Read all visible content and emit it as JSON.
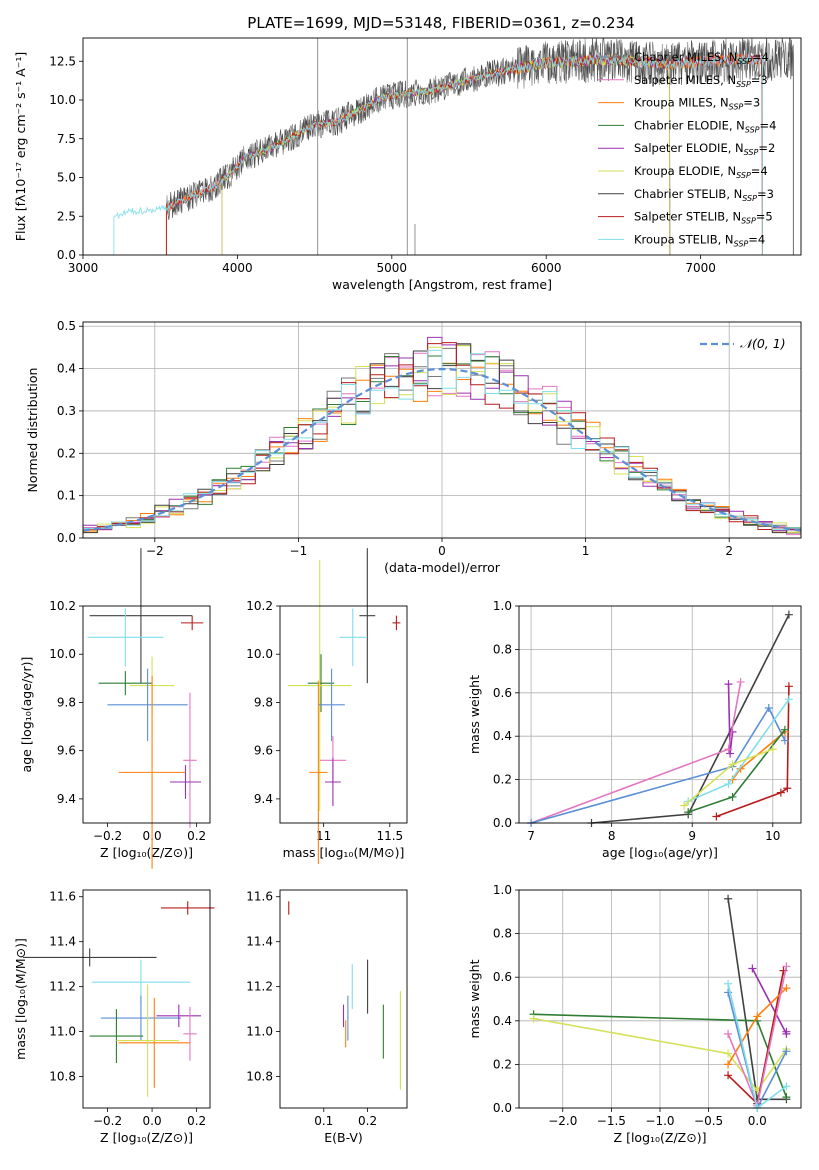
{
  "chart_data": [
    {
      "id": "spectrum",
      "type": "line",
      "title": "PLATE=1699, MJD=53148, FIBERID=0361, z=0.234",
      "xlabel": "wavelength [Angstrom, rest frame]",
      "ylabel": "Flux [fλ10⁻¹⁷ erg cm⁻² s⁻¹ A⁻¹]",
      "xlim": [
        3000,
        7650
      ],
      "ylim": [
        0,
        14
      ],
      "xticks": [
        3000,
        4000,
        5000,
        6000,
        7000
      ],
      "yticks": [
        0.0,
        2.5,
        5.0,
        7.5,
        10.0,
        12.5
      ],
      "legend_position": "top-right",
      "continuum": {
        "x": [
          3200,
          3300,
          3450,
          3550,
          3700,
          3850,
          3950,
          4050,
          4200,
          4350,
          4500,
          4650,
          4800,
          4950,
          5100,
          5250,
          5400,
          5600,
          5800,
          6000,
          6200,
          6400,
          6600,
          6800,
          7000,
          7200,
          7400,
          7600
        ],
        "y": [
          2.4,
          2.8,
          2.9,
          3.1,
          3.8,
          4.4,
          5.2,
          6.3,
          6.8,
          7.6,
          8.4,
          8.6,
          9.4,
          10.2,
          10.4,
          10.6,
          11.0,
          11.6,
          12.0,
          12.4,
          12.5,
          12.6,
          12.5,
          12.3,
          12.5,
          12.6,
          12.6,
          12.7
        ]
      },
      "series": [
        {
          "name": "Chabrier MILES, N",
          "nssp": "4",
          "color": "#7a7a7a",
          "start": 3540,
          "end": 7600
        },
        {
          "name": "Salpeter MILES, N",
          "nssp": "3",
          "color": "#e377c2",
          "start": 3540,
          "end": 7400
        },
        {
          "name": "Kroupa MILES, N",
          "nssp": "3",
          "color": "#ff7f0e",
          "start": 3540,
          "end": 7400
        },
        {
          "name": "Chabrier ELODIE, N",
          "nssp": "4",
          "color": "#2e7d32",
          "start": 3900,
          "end": 6800
        },
        {
          "name": "Salpeter ELODIE, N",
          "nssp": "2",
          "color": "#9b30b0",
          "start": 3900,
          "end": 6800
        },
        {
          "name": "Kroupa ELODIE, N",
          "nssp": "4",
          "color": "#d4e157",
          "start": 3900,
          "end": 6800
        },
        {
          "name": "Chabrier STELIB, N",
          "nssp": "3",
          "color": "#404040",
          "start": 3540,
          "end": 7600
        },
        {
          "name": "Salpeter STELIB, N",
          "nssp": "5",
          "color": "#b71c1c",
          "start": 3540,
          "end": 7400
        },
        {
          "name": "Kroupa STELIB, N",
          "nssp": "4",
          "color": "#80deea",
          "start": 3200,
          "end": 7400
        }
      ],
      "legend_sub": "SSP"
    },
    {
      "id": "residuals",
      "type": "histogram",
      "xlabel": "(data-model)/error",
      "ylabel": "Normed distribution",
      "xlim": [
        -2.5,
        2.5
      ],
      "ylim": [
        0,
        0.51
      ],
      "xticks": [
        -2,
        -1,
        0,
        1,
        2
      ],
      "yticks": [
        0.0,
        0.1,
        0.2,
        0.3,
        0.4,
        0.5
      ],
      "grid": true,
      "gaussian_label": "𝒩(0, 1)",
      "gaussian_color": "#5b8fd6",
      "bin_width": 0.1,
      "series_colors": [
        "#7a7a7a",
        "#e377c2",
        "#ff7f0e",
        "#2e7d32",
        "#9b30b0",
        "#d4e157",
        "#404040",
        "#b71c1c",
        "#80deea"
      ]
    },
    {
      "id": "age_vs_Z",
      "type": "errorbar",
      "xlabel": "Z [log₁₀(Z/Z⊙)]",
      "ylabel": "age  [log₁₀(age/yr)]",
      "xlim": [
        -0.31,
        0.26
      ],
      "ylim": [
        9.3,
        10.2
      ],
      "xticks": [
        -0.2,
        0.0,
        0.2
      ],
      "xticklabels": [
        "−0.2",
        "0.0",
        "0.2"
      ],
      "yticks": [
        9.4,
        9.6,
        9.8,
        10.0,
        10.2
      ],
      "points": [
        {
          "x": -0.05,
          "xerr": 0.23,
          "y": 10.16,
          "yerr": 0.28,
          "color": "#404040"
        },
        {
          "x": 0.18,
          "xerr": 0.05,
          "y": 10.13,
          "yerr": 0.03,
          "color": "#b71c1c"
        },
        {
          "x": -0.12,
          "xerr": 0.17,
          "y": 10.07,
          "yerr": 0.12,
          "color": "#80deea"
        },
        {
          "x": -0.12,
          "xerr": 0.12,
          "y": 9.88,
          "yerr": 0.05,
          "color": "#2e7d32"
        },
        {
          "x": 0.0,
          "xerr": 0.1,
          "y": 9.87,
          "yerr": 0.12,
          "color": "#d4e157"
        },
        {
          "x": -0.02,
          "xerr": 0.18,
          "y": 9.79,
          "yerr": 0.15,
          "color": "#5b8fd6"
        },
        {
          "x": 0.17,
          "xerr": 0.03,
          "y": 9.56,
          "yerr": 0.28,
          "color": "#e377c2"
        },
        {
          "x": 0.15,
          "xerr": 0.07,
          "y": 9.47,
          "yerr": 0.07,
          "color": "#9b30b0"
        },
        {
          "x": 0.0,
          "xerr": 0.15,
          "y": 9.51,
          "yerr": 0.4,
          "color": "#ff7f0e"
        }
      ]
    },
    {
      "id": "age_vs_mass",
      "type": "errorbar",
      "xlabel": "mass [log₁₀(M/M⊙)]",
      "ylabel": "",
      "xlim": [
        10.67,
        11.63
      ],
      "ylim": [
        9.3,
        10.2
      ],
      "xticks": [
        11.0,
        11.5
      ],
      "yticks": [
        9.4,
        9.6,
        9.8,
        10.0,
        10.2
      ],
      "points": [
        {
          "x": 11.33,
          "xerr": 0.06,
          "y": 10.16,
          "yerr": 0.28,
          "color": "#404040"
        },
        {
          "x": 11.55,
          "xerr": 0.03,
          "y": 10.13,
          "yerr": 0.03,
          "color": "#b71c1c"
        },
        {
          "x": 11.22,
          "xerr": 0.1,
          "y": 10.07,
          "yerr": 0.12,
          "color": "#80deea"
        },
        {
          "x": 10.98,
          "xerr": 0.1,
          "y": 9.88,
          "yerr": 0.12,
          "color": "#2e7d32"
        },
        {
          "x": 10.97,
          "xerr": 0.24,
          "y": 9.87,
          "yerr": 0.52,
          "color": "#d4e157"
        },
        {
          "x": 11.06,
          "xerr": 0.1,
          "y": 9.79,
          "yerr": 0.15,
          "color": "#5b8fd6"
        },
        {
          "x": 11.07,
          "xerr": 0.1,
          "y": 9.56,
          "yerr": 0.1,
          "color": "#e377c2"
        },
        {
          "x": 11.07,
          "xerr": 0.06,
          "y": 9.47,
          "yerr": 0.1,
          "color": "#9b30b0"
        },
        {
          "x": 10.96,
          "xerr": 0.07,
          "y": 9.51,
          "yerr": 0.38,
          "color": "#ff7f0e"
        }
      ]
    },
    {
      "id": "weight_vs_age",
      "type": "line",
      "xlabel": "age  [log₁₀(age/yr)]",
      "ylabel": "mass weight",
      "xlim": [
        6.85,
        10.35
      ],
      "ylim": [
        0,
        1.0
      ],
      "xticks": [
        7,
        8,
        9,
        10
      ],
      "yticks": [
        0.0,
        0.2,
        0.4,
        0.6,
        0.8,
        1.0
      ],
      "grid": true,
      "series": [
        {
          "color": "#404040",
          "x": [
            7.75,
            8.95,
            10.2
          ],
          "y": [
            0.0,
            0.04,
            0.96
          ]
        },
        {
          "color": "#b71c1c",
          "x": [
            9.3,
            10.1,
            10.18,
            10.2
          ],
          "y": [
            0.03,
            0.14,
            0.16,
            0.63
          ]
        },
        {
          "color": "#9b30b0",
          "x": [
            9.45,
            9.47,
            9.5
          ],
          "y": [
            0.64,
            0.32,
            0.42
          ]
        },
        {
          "color": "#e377c2",
          "x": [
            7.0,
            9.45,
            9.6
          ],
          "y": [
            0.0,
            0.34,
            0.65
          ]
        },
        {
          "color": "#5b8fd6",
          "x": [
            7.0,
            9.5,
            9.95,
            10.15
          ],
          "y": [
            0.0,
            0.26,
            0.53,
            0.38
          ]
        },
        {
          "color": "#ff7f0e",
          "x": [
            9.5,
            9.6,
            10.15
          ],
          "y": [
            0.2,
            0.25,
            0.42
          ]
        },
        {
          "color": "#2e7d32",
          "x": [
            8.95,
            9.5,
            10.15
          ],
          "y": [
            0.05,
            0.12,
            0.43
          ]
        },
        {
          "color": "#80deea",
          "x": [
            8.95,
            9.45,
            10.2
          ],
          "y": [
            0.1,
            0.18,
            0.57
          ]
        },
        {
          "color": "#d4e157",
          "x": [
            8.9,
            9.5,
            10.0
          ],
          "y": [
            0.08,
            0.27,
            0.34
          ]
        }
      ]
    },
    {
      "id": "mass_vs_Z",
      "type": "errorbar",
      "xlabel": "Z [log₁₀(Z/Z⊙)]",
      "ylabel": "mass [log₁₀(M/M⊙)]",
      "xlim": [
        -0.31,
        0.26
      ],
      "ylim": [
        10.66,
        11.63
      ],
      "xticks": [
        -0.2,
        0.0,
        0.2
      ],
      "xticklabels": [
        "−0.2",
        "0.0",
        "0.2"
      ],
      "yticks": [
        10.8,
        11.0,
        11.2,
        11.4,
        11.6
      ],
      "points": [
        {
          "x": 0.16,
          "xerr": 0.12,
          "y": 11.55,
          "yerr": 0.03,
          "color": "#b71c1c"
        },
        {
          "x": -0.28,
          "xerr": 0.3,
          "y": 11.33,
          "yerr": 0.04,
          "color": "#404040"
        },
        {
          "x": -0.05,
          "xerr": 0.22,
          "y": 11.22,
          "yerr": 0.1,
          "color": "#80deea"
        },
        {
          "x": -0.05,
          "xerr": 0.18,
          "y": 11.06,
          "yerr": 0.1,
          "color": "#5b8fd6"
        },
        {
          "x": 0.12,
          "xerr": 0.1,
          "y": 11.07,
          "yerr": 0.05,
          "color": "#9b30b0"
        },
        {
          "x": 0.17,
          "xerr": 0.03,
          "y": 10.99,
          "yerr": 0.12,
          "color": "#e377c2"
        },
        {
          "x": -0.16,
          "xerr": 0.12,
          "y": 10.98,
          "yerr": 0.12,
          "color": "#2e7d32"
        },
        {
          "x": 0.01,
          "xerr": 0.16,
          "y": 10.95,
          "yerr": 0.2,
          "color": "#ff7f0e"
        },
        {
          "x": -0.02,
          "xerr": 0.14,
          "y": 10.96,
          "yerr": 0.25,
          "color": "#d4e157"
        }
      ]
    },
    {
      "id": "mass_vs_ebv",
      "type": "errorbar",
      "xlabel": "E(B-V)",
      "ylabel": "",
      "xlim": [
        0.0,
        0.29
      ],
      "ylim": [
        10.66,
        11.63
      ],
      "xticks": [
        0.1,
        0.2
      ],
      "yticks": [
        10.8,
        11.0,
        11.2,
        11.4,
        11.6
      ],
      "points": [
        {
          "x": 0.02,
          "xerr": 0.0,
          "y": 11.55,
          "yerr": 0.03,
          "color": "#b71c1c"
        },
        {
          "x": 0.2,
          "xerr": 0.0,
          "y": 11.2,
          "yerr": 0.12,
          "color": "#404040"
        },
        {
          "x": 0.165,
          "xerr": 0.0,
          "y": 11.2,
          "yerr": 0.1,
          "color": "#80deea"
        },
        {
          "x": 0.155,
          "xerr": 0.0,
          "y": 11.06,
          "yerr": 0.1,
          "color": "#5b8fd6"
        },
        {
          "x": 0.145,
          "xerr": 0.0,
          "y": 11.07,
          "yerr": 0.05,
          "color": "#9b30b0"
        },
        {
          "x": 0.15,
          "xerr": 0.0,
          "y": 10.99,
          "yerr": 0.06,
          "color": "#ff7f0e"
        },
        {
          "x": 0.236,
          "xerr": 0.0,
          "y": 11.0,
          "yerr": 0.12,
          "color": "#2e7d32"
        },
        {
          "x": 0.275,
          "xerr": 0.0,
          "y": 10.96,
          "yerr": 0.22,
          "color": "#d4e157"
        }
      ]
    },
    {
      "id": "weight_vs_Z",
      "type": "line",
      "xlabel": "Z [log₁₀(Z/Z⊙)]",
      "ylabel": "mass weight",
      "xlim": [
        -2.45,
        0.45
      ],
      "ylim": [
        0,
        1.0
      ],
      "xticks": [
        -2.0,
        -1.5,
        -1.0,
        -0.5,
        0.0
      ],
      "xticklabels": [
        "−2.0",
        "−1.5",
        "−1.0",
        "−0.5",
        "0.0"
      ],
      "yticks": [
        0.0,
        0.2,
        0.4,
        0.6,
        0.8,
        1.0
      ],
      "grid": true,
      "series": [
        {
          "color": "#404040",
          "x": [
            -0.3,
            0.0,
            0.3
          ],
          "y": [
            0.96,
            0.04,
            0.04
          ]
        },
        {
          "color": "#2e7d32",
          "x": [
            -2.3,
            0.0,
            0.3
          ],
          "y": [
            0.43,
            0.4,
            0.05
          ]
        },
        {
          "color": "#d4e157",
          "x": [
            -2.3,
            -0.3,
            0.0,
            0.3
          ],
          "y": [
            0.41,
            0.25,
            0.08,
            0.27
          ]
        },
        {
          "color": "#9b30b0",
          "x": [
            -0.05,
            0.3,
            0.3
          ],
          "y": [
            0.64,
            0.34,
            0.35
          ]
        },
        {
          "color": "#b71c1c",
          "x": [
            -0.3,
            0.0,
            0.27
          ],
          "y": [
            0.15,
            0.02,
            0.63
          ]
        },
        {
          "color": "#ff7f0e",
          "x": [
            -0.3,
            0.0,
            0.3
          ],
          "y": [
            0.2,
            0.42,
            0.55
          ]
        },
        {
          "color": "#e377c2",
          "x": [
            -0.3,
            0.0,
            0.3
          ],
          "y": [
            0.34,
            0.01,
            0.65
          ]
        },
        {
          "color": "#5b8fd6",
          "x": [
            -0.3,
            0.0,
            0.3
          ],
          "y": [
            0.53,
            0.0,
            0.26
          ]
        },
        {
          "color": "#80deea",
          "x": [
            -0.3,
            0.0,
            0.3
          ],
          "y": [
            0.57,
            0.0,
            0.1
          ]
        }
      ]
    }
  ]
}
